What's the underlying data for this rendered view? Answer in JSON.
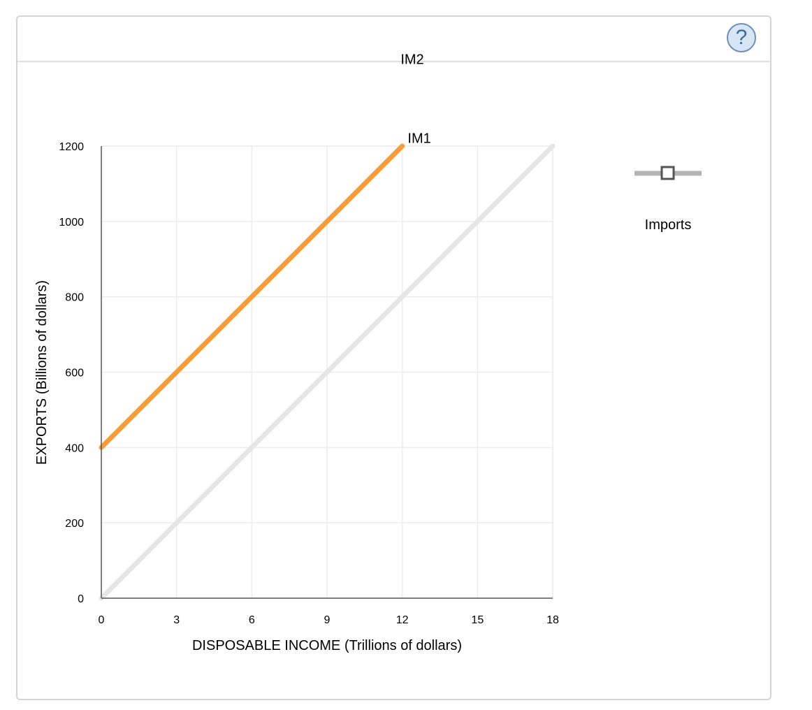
{
  "help": {
    "label": "?"
  },
  "colors": {
    "im1": "#e6e6e6",
    "im2": "#f59e39",
    "legend_line": "#b3b3b3",
    "legend_marker": "#555555",
    "grid": "#ececec",
    "axis": "#555555"
  },
  "legend": {
    "label": "Imports",
    "icon": "line-with-square-marker-icon"
  },
  "chart_data": {
    "type": "line",
    "title": "",
    "xlabel": "DISPOSABLE INCOME (Trillions of dollars)",
    "ylabel": "EXPORTS (Billions of dollars)",
    "xlim": [
      0,
      18
    ],
    "ylim": [
      0,
      1200
    ],
    "x_ticks": [
      "0",
      "3",
      "6",
      "9",
      "12",
      "15",
      "18"
    ],
    "y_ticks": [
      "0",
      "200",
      "400",
      "600",
      "800",
      "1000",
      "1200"
    ],
    "grid": true,
    "series": [
      {
        "name": "IM1",
        "points": [
          [
            0,
            0
          ],
          [
            18,
            1200
          ]
        ]
      },
      {
        "name": "IM2",
        "points": [
          [
            0,
            400
          ],
          [
            12,
            1200
          ]
        ]
      }
    ]
  }
}
